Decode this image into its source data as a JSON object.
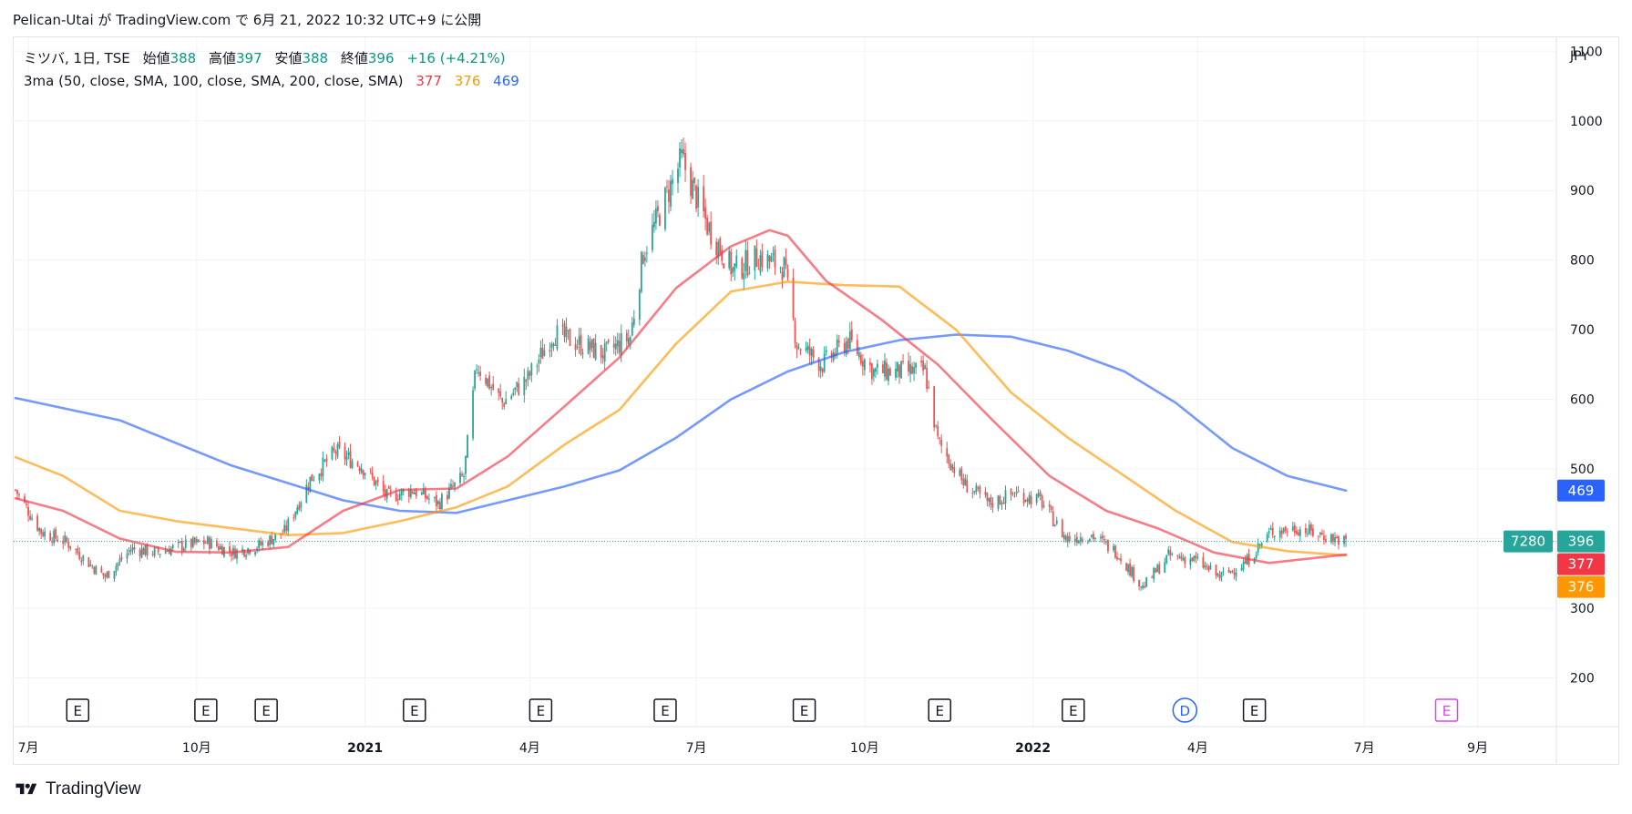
{
  "header": {
    "publication": "Pelican-Utai が TradingView.com で 6月 21, 2022 10:32 UTC+9 に公開"
  },
  "legend": {
    "symbol": "ミツバ, 1日, TSE",
    "open_label": "始値",
    "open": "388",
    "high_label": "高値",
    "high": "397",
    "low_label": "安値",
    "low": "388",
    "close_label": "終値",
    "close": "396",
    "change": "+16 (+4.21%)",
    "ma_label": "3ma (50, close, SMA, 100, close, SMA, 200, close, SMA)",
    "ma50_value": "377",
    "ma100_value": "376",
    "ma200_value": "469"
  },
  "colors": {
    "up": "#26a69a",
    "down": "#ef5350",
    "ma50": "#f23645",
    "ma100": "#ff9800",
    "ma200": "#2962ff",
    "purple": "#e040fb",
    "grid": "#f0f3fa"
  },
  "chart_data": {
    "type": "candlestick",
    "currency": "JPY",
    "y_ticks": [
      200,
      300,
      400,
      500,
      600,
      700,
      800,
      900,
      1000,
      1100
    ],
    "y_range": [
      130,
      1120
    ],
    "x_labels": [
      {
        "label": "7月",
        "date": "2020-07"
      },
      {
        "label": "10月",
        "date": "2020-10"
      },
      {
        "label": "2021",
        "date": "2021-01",
        "bold": true
      },
      {
        "label": "4月",
        "date": "2021-04"
      },
      {
        "label": "7月",
        "date": "2021-07"
      },
      {
        "label": "10月",
        "date": "2021-10"
      },
      {
        "label": "2022",
        "date": "2022-01",
        "bold": true
      },
      {
        "label": "4月",
        "date": "2022-04"
      },
      {
        "label": "7月",
        "date": "2022-07"
      },
      {
        "label": "9月",
        "date": "2022-09"
      }
    ],
    "x_range": [
      "2020-06-23",
      "2022-10-14"
    ],
    "price_path": [
      [
        "2020-06-24",
        470
      ],
      [
        "2020-07-08",
        410
      ],
      [
        "2020-07-22",
        395
      ],
      [
        "2020-08-05",
        360
      ],
      [
        "2020-08-12",
        345
      ],
      [
        "2020-08-26",
        385
      ],
      [
        "2020-09-09",
        380
      ],
      [
        "2020-09-23",
        390
      ],
      [
        "2020-10-07",
        395
      ],
      [
        "2020-10-21",
        380
      ],
      [
        "2020-11-04",
        390
      ],
      [
        "2020-11-18",
        410
      ],
      [
        "2020-12-02",
        485
      ],
      [
        "2020-12-16",
        525
      ],
      [
        "2020-12-30",
        505
      ],
      [
        "2021-01-13",
        460
      ],
      [
        "2021-01-27",
        470
      ],
      [
        "2021-02-10",
        450
      ],
      [
        "2021-02-24",
        490
      ],
      [
        "2021-03-03",
        650
      ],
      [
        "2021-03-17",
        595
      ],
      [
        "2021-03-31",
        630
      ],
      [
        "2021-04-14",
        695
      ],
      [
        "2021-04-28",
        680
      ],
      [
        "2021-05-12",
        665
      ],
      [
        "2021-05-26",
        690
      ],
      [
        "2021-06-02",
        810
      ],
      [
        "2021-06-16",
        900
      ],
      [
        "2021-06-23",
        945
      ],
      [
        "2021-07-07",
        850
      ],
      [
        "2021-07-21",
        785
      ],
      [
        "2021-08-04",
        805
      ],
      [
        "2021-08-18",
        790
      ],
      [
        "2021-08-25",
        680
      ],
      [
        "2021-09-08",
        650
      ],
      [
        "2021-09-22",
        685
      ],
      [
        "2021-10-06",
        640
      ],
      [
        "2021-10-20",
        640
      ],
      [
        "2021-11-03",
        640
      ],
      [
        "2021-11-10",
        540
      ],
      [
        "2021-11-24",
        480
      ],
      [
        "2021-12-08",
        450
      ],
      [
        "2021-12-22",
        465
      ],
      [
        "2022-01-05",
        455
      ],
      [
        "2022-01-19",
        400
      ],
      [
        "2022-02-02",
        405
      ],
      [
        "2022-02-16",
        380
      ],
      [
        "2022-03-02",
        330
      ],
      [
        "2022-03-16",
        375
      ],
      [
        "2022-03-30",
        370
      ],
      [
        "2022-04-13",
        345
      ],
      [
        "2022-04-27",
        365
      ],
      [
        "2022-05-11",
        410
      ],
      [
        "2022-05-25",
        415
      ],
      [
        "2022-06-08",
        405
      ],
      [
        "2022-06-21",
        396
      ]
    ],
    "ma50": [
      [
        "2020-06-24",
        458
      ],
      [
        "2020-07-20",
        440
      ],
      [
        "2020-08-20",
        400
      ],
      [
        "2020-09-20",
        381
      ],
      [
        "2020-10-20",
        380
      ],
      [
        "2020-11-20",
        388
      ],
      [
        "2020-12-20",
        440
      ],
      [
        "2021-01-20",
        470
      ],
      [
        "2021-02-20",
        472
      ],
      [
        "2021-03-20",
        518
      ],
      [
        "2021-04-20",
        590
      ],
      [
        "2021-05-20",
        660
      ],
      [
        "2021-06-20",
        760
      ],
      [
        "2021-07-20",
        820
      ],
      [
        "2021-08-10",
        843
      ],
      [
        "2021-08-20",
        835
      ],
      [
        "2021-09-10",
        770
      ],
      [
        "2021-10-10",
        715
      ],
      [
        "2021-11-10",
        650
      ],
      [
        "2021-12-10",
        570
      ],
      [
        "2022-01-10",
        490
      ],
      [
        "2022-02-10",
        440
      ],
      [
        "2022-03-10",
        415
      ],
      [
        "2022-04-10",
        380
      ],
      [
        "2022-05-10",
        365
      ],
      [
        "2022-06-21",
        377
      ]
    ],
    "ma100": [
      [
        "2020-06-24",
        517
      ],
      [
        "2020-07-20",
        490
      ],
      [
        "2020-08-20",
        440
      ],
      [
        "2020-09-20",
        425
      ],
      [
        "2020-10-20",
        415
      ],
      [
        "2020-11-20",
        405
      ],
      [
        "2020-12-20",
        408
      ],
      [
        "2021-01-20",
        425
      ],
      [
        "2021-02-20",
        445
      ],
      [
        "2021-03-20",
        475
      ],
      [
        "2021-04-20",
        535
      ],
      [
        "2021-05-20",
        585
      ],
      [
        "2021-06-20",
        680
      ],
      [
        "2021-07-20",
        755
      ],
      [
        "2021-08-20",
        769
      ],
      [
        "2021-09-20",
        764
      ],
      [
        "2021-10-20",
        762
      ],
      [
        "2021-11-20",
        700
      ],
      [
        "2021-12-20",
        610
      ],
      [
        "2022-01-20",
        545
      ],
      [
        "2022-02-20",
        490
      ],
      [
        "2022-03-20",
        440
      ],
      [
        "2022-04-20",
        395
      ],
      [
        "2022-05-20",
        382
      ],
      [
        "2022-06-21",
        376
      ]
    ],
    "ma200": [
      [
        "2020-06-24",
        602
      ],
      [
        "2020-08-20",
        570
      ],
      [
        "2020-10-20",
        505
      ],
      [
        "2020-12-20",
        455
      ],
      [
        "2021-01-20",
        440
      ],
      [
        "2021-02-20",
        437
      ],
      [
        "2021-03-20",
        455
      ],
      [
        "2021-04-20",
        475
      ],
      [
        "2021-05-20",
        498
      ],
      [
        "2021-06-20",
        545
      ],
      [
        "2021-07-20",
        600
      ],
      [
        "2021-08-20",
        640
      ],
      [
        "2021-09-20",
        668
      ],
      [
        "2021-10-20",
        685
      ],
      [
        "2021-11-20",
        693
      ],
      [
        "2021-12-20",
        690
      ],
      [
        "2022-01-20",
        670
      ],
      [
        "2022-02-20",
        640
      ],
      [
        "2022-03-20",
        595
      ],
      [
        "2022-04-20",
        530
      ],
      [
        "2022-05-20",
        490
      ],
      [
        "2022-06-21",
        469
      ]
    ],
    "last_price_line": 396,
    "price_labels": [
      {
        "value": 469,
        "text": "469",
        "color": "#2962ff"
      },
      {
        "value": 396,
        "text": "396",
        "color": "#26a69a"
      },
      {
        "value": 377,
        "text": "377",
        "color": "#f23645"
      },
      {
        "value": 376,
        "text": "376",
        "color": "#ff9800"
      }
    ],
    "volume_label": "7280",
    "events": [
      {
        "date": "2020-07-28",
        "type": "E"
      },
      {
        "date": "2020-10-06",
        "type": "E"
      },
      {
        "date": "2020-11-08",
        "type": "E"
      },
      {
        "date": "2021-01-28",
        "type": "E"
      },
      {
        "date": "2021-04-07",
        "type": "E"
      },
      {
        "date": "2021-06-14",
        "type": "E"
      },
      {
        "date": "2021-08-29",
        "type": "E"
      },
      {
        "date": "2021-11-11",
        "type": "E"
      },
      {
        "date": "2022-01-23",
        "type": "E"
      },
      {
        "date": "2022-03-25",
        "type": "D"
      },
      {
        "date": "2022-05-02",
        "type": "E"
      },
      {
        "date": "2022-08-15",
        "type": "E",
        "upcoming": true
      }
    ]
  },
  "footer": {
    "logo_text": "TradingView"
  }
}
